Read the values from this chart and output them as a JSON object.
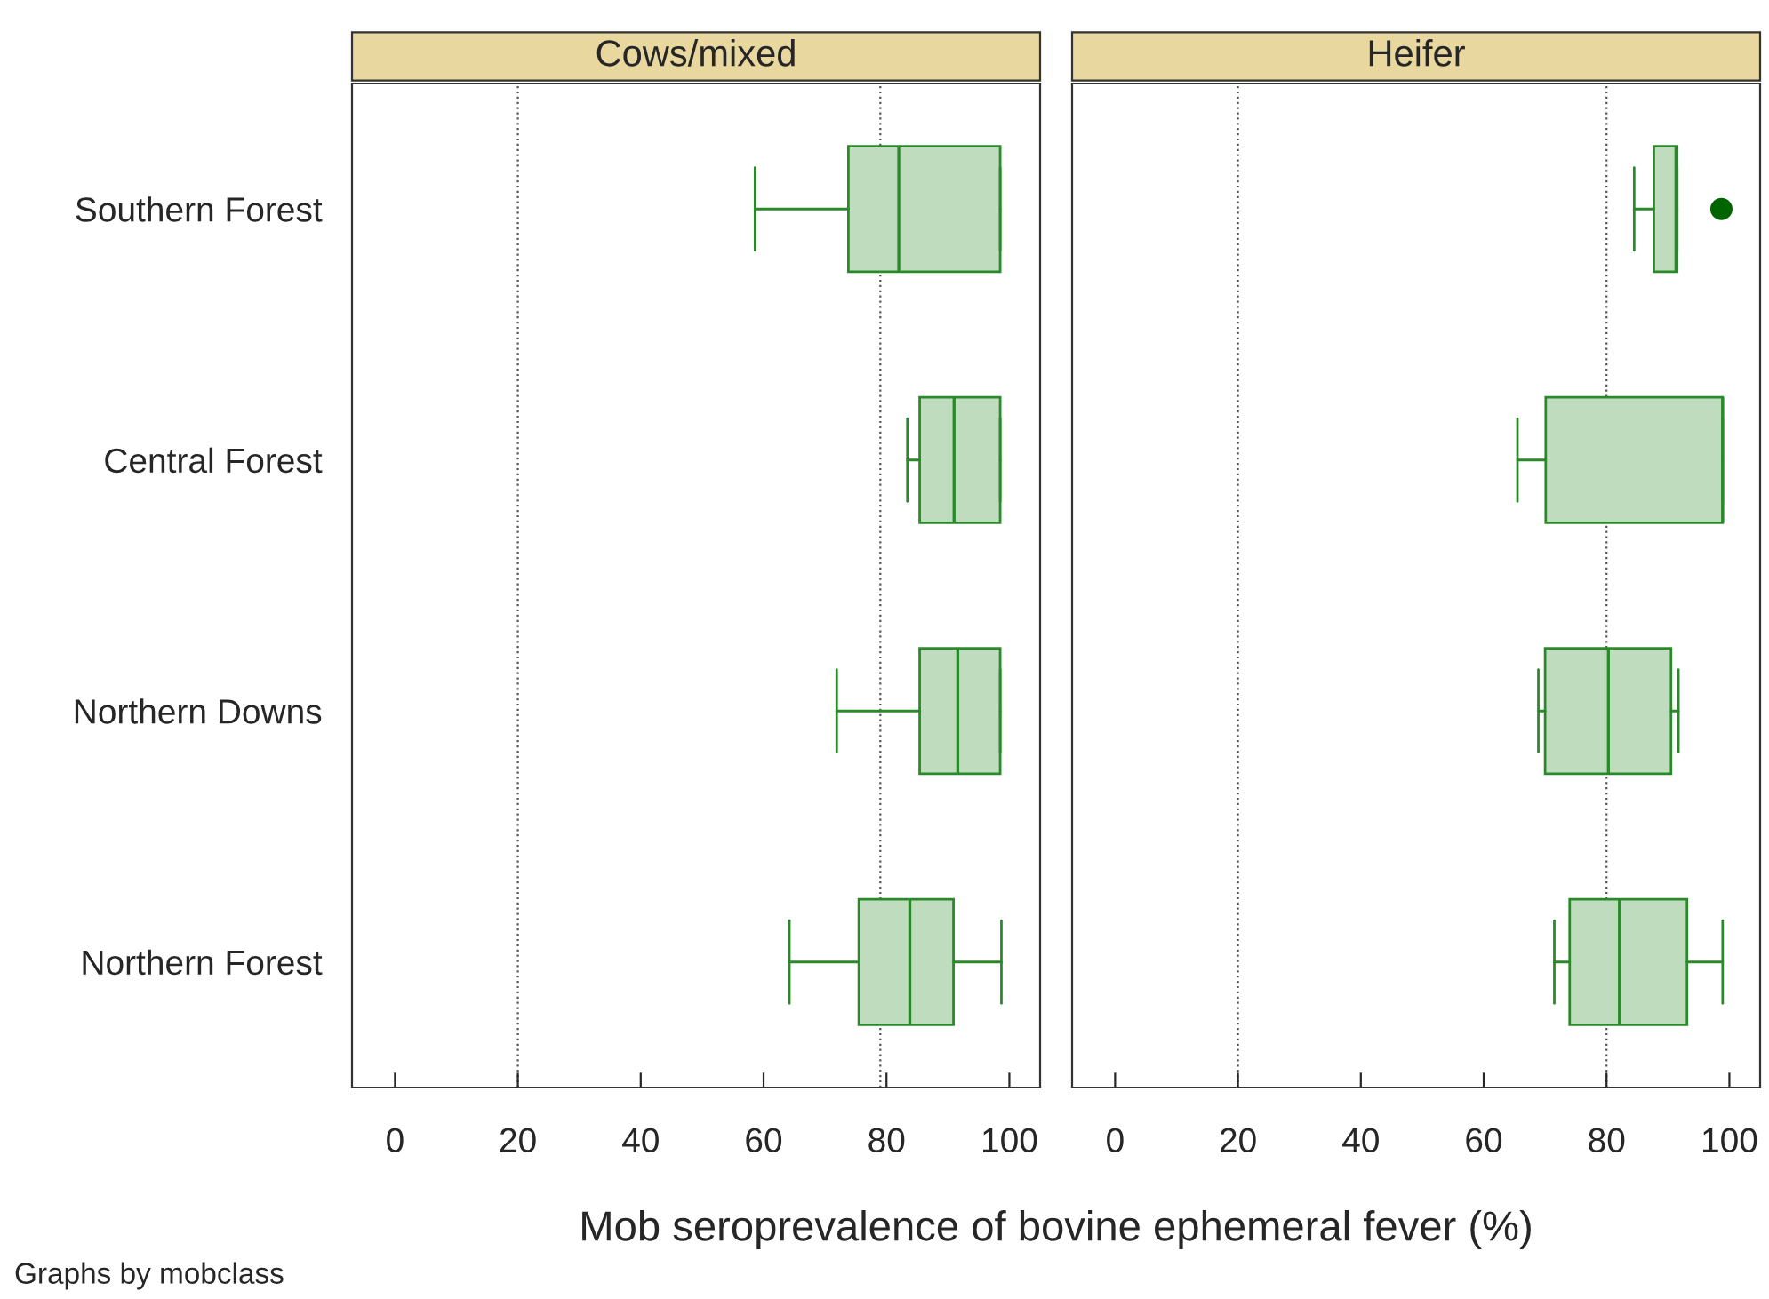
{
  "chart_data": [
    {
      "type": "box",
      "orientation": "horizontal",
      "title": "Cows/mixed",
      "categories": [
        "Southern Forest",
        "Central Forest",
        "Northern Downs",
        "Northern Forest"
      ],
      "boxes": [
        {
          "low": 58.6,
          "q1": 73.8,
          "median": 82.0,
          "q3": 98.5,
          "high": 98.5
        },
        {
          "low": 83.4,
          "q1": 85.4,
          "median": 91.0,
          "q3": 98.5,
          "high": 98.5
        },
        {
          "low": 71.9,
          "q1": 85.4,
          "median": 91.6,
          "q3": 98.5,
          "high": 98.5
        },
        {
          "low": 64.2,
          "q1": 75.5,
          "median": 83.8,
          "q3": 90.9,
          "high": 98.7
        }
      ],
      "color": "#2a8a2a",
      "xlim": [
        -7,
        105
      ],
      "xticks": [
        0,
        20,
        40,
        60,
        80,
        100
      ],
      "ref_lines": [
        {
          "axis": "x",
          "value": 20,
          "line_style": "dotted",
          "color": "#555555"
        },
        {
          "axis": "x",
          "value": 79,
          "line_style": "dotted",
          "color": "#555555"
        }
      ],
      "xlabel": "Mob seroprevalence of bovine ephemeral fever (%)",
      "annotations": [
        "Graphs by mobclass"
      ],
      "grid": false,
      "legend": false
    },
    {
      "type": "box",
      "orientation": "horizontal",
      "title": "Heifer",
      "categories": [
        null,
        null,
        null,
        null
      ],
      "boxes": [
        {
          "low": 84.5,
          "q1": 87.7,
          "median": 91.3,
          "q3": 91.5,
          "high": 91.5,
          "outliers": [
            98.7
          ]
        },
        {
          "low": 65.5,
          "q1": 70.1,
          "median": 98.9,
          "q3": 98.9,
          "high": 98.9
        },
        {
          "low": 68.9,
          "q1": 70.0,
          "median": 80.3,
          "q3": 90.5,
          "high": 91.7
        },
        {
          "low": 71.5,
          "q1": 74.0,
          "median": 82.1,
          "q3": 93.1,
          "high": 98.9
        }
      ],
      "color": "#2a8a2a",
      "xlim": [
        -7,
        105
      ],
      "xticks": [
        0,
        20,
        40,
        60,
        80,
        100
      ],
      "ref_lines": [
        {
          "axis": "x",
          "value": 20,
          "line_style": "dotted",
          "color": "#555555"
        },
        {
          "axis": "x",
          "value": 80,
          "line_style": "dotted",
          "color": "#555555"
        }
      ],
      "tick_labels": "x",
      "grid": false,
      "legend": false
    }
  ]
}
